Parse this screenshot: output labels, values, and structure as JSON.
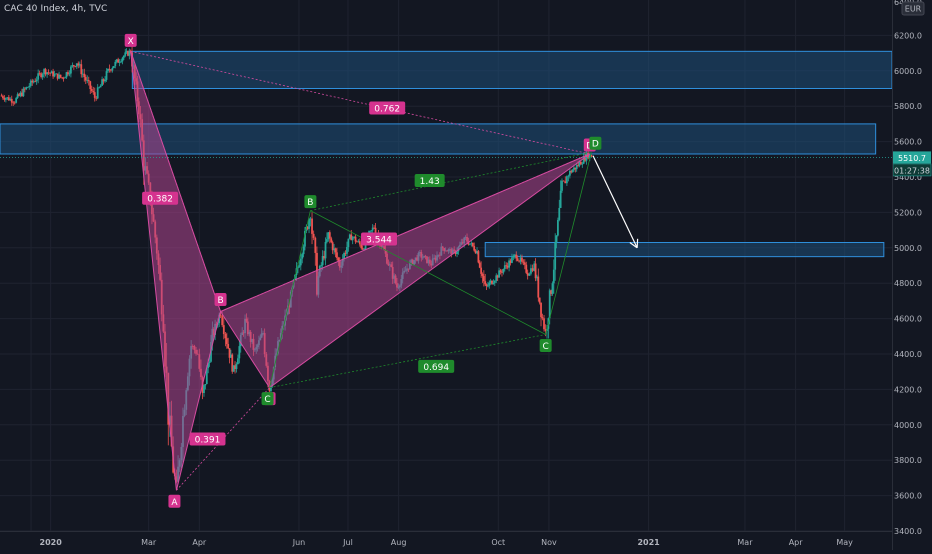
{
  "header": {
    "symbol_title": "CAC 40 Index, 4h, TVC",
    "currency": "EUR",
    "scale_top_label": "6400.0"
  },
  "colors": {
    "background": "#131722",
    "grid": "#1f2330",
    "candle_up": "#26a69a",
    "candle_down": "#ef5350",
    "pattern_fill": "#b0458f",
    "pattern_line": "#d54ba0",
    "label_pink": "#d5338f",
    "label_green": "#1f8b2c",
    "zone_fill": "#1e4e79",
    "zone_border": "#2f8fdc",
    "arrow": "#ffffff",
    "price_tag_bg": "#0f3b36"
  },
  "chart_data": {
    "type": "line",
    "title": "CAC 40 Index, 4h, TVC",
    "currency": "EUR",
    "grid": false,
    "y_axis": {
      "ticks": [
        3400,
        3600,
        3800,
        4000,
        4200,
        4400,
        4600,
        4800,
        5000,
        5200,
        5400,
        5600,
        5800,
        6000,
        6200
      ],
      "tick_labels": [
        "3400.0",
        "3600.0",
        "3800.0",
        "4000.0",
        "4200.0",
        "4400.0",
        "4600.0",
        "4800.0",
        "5000.0",
        "5200.0",
        "5400.0",
        "5600.0",
        "5800.0",
        "6000.0",
        "6200.0"
      ],
      "ylim": [
        3400,
        6400
      ]
    },
    "x_axis": {
      "ticks": [
        "2019-12-20",
        "2020-01-01",
        "2020-03-01",
        "2020-04-01",
        "2020-06-01",
        "2020-07-01",
        "2020-08-01",
        "2020-10-01",
        "2020-11-01",
        "2021-01-01",
        "2021-03-01",
        "2021-04-01",
        "2021-05-01"
      ],
      "tick_labels": [
        "",
        "2020",
        "Mar",
        "Apr",
        "Jun",
        "Jul",
        "Aug",
        "Oct",
        "Nov",
        "2021",
        "Mar",
        "Apr",
        "May"
      ],
      "xlim": [
        "2019-12-01",
        "2021-05-30"
      ]
    },
    "series": [
      {
        "values": [
          [
            "2019-12-01",
            5860
          ],
          [
            "2019-12-10",
            5830
          ],
          [
            "2019-12-18",
            5910
          ],
          [
            "2019-12-28",
            6000
          ],
          [
            "2020-01-08",
            5960
          ],
          [
            "2020-01-17",
            6050
          ],
          [
            "2020-01-28",
            5850
          ],
          [
            "2020-02-06",
            6010
          ],
          [
            "2020-02-14",
            6080
          ],
          [
            "2020-02-19",
            6110
          ],
          [
            "2020-02-24",
            5790
          ],
          [
            "2020-02-27",
            5490
          ],
          [
            "2020-03-02",
            5280
          ],
          [
            "2020-03-06",
            4990
          ],
          [
            "2020-03-10",
            4600
          ],
          [
            "2020-03-13",
            4080
          ],
          [
            "2020-03-16",
            3760
          ],
          [
            "2020-03-18",
            3630
          ],
          [
            "2020-03-20",
            3840
          ],
          [
            "2020-03-24",
            4250
          ],
          [
            "2020-03-27",
            4450
          ],
          [
            "2020-03-31",
            4400
          ],
          [
            "2020-04-03",
            4150
          ],
          [
            "2020-04-09",
            4500
          ],
          [
            "2020-04-14",
            4640
          ],
          [
            "2020-04-17",
            4510
          ],
          [
            "2020-04-22",
            4300
          ],
          [
            "2020-04-29",
            4580
          ],
          [
            "2020-05-05",
            4410
          ],
          [
            "2020-05-10",
            4520
          ],
          [
            "2020-05-14",
            4210
          ],
          [
            "2020-05-20",
            4480
          ],
          [
            "2020-05-27",
            4720
          ],
          [
            "2020-06-03",
            5000
          ],
          [
            "2020-06-08",
            5200
          ],
          [
            "2020-06-12",
            4800
          ],
          [
            "2020-06-19",
            5070
          ],
          [
            "2020-06-26",
            4900
          ],
          [
            "2020-07-03",
            5070
          ],
          [
            "2020-07-10",
            5000
          ],
          [
            "2020-07-17",
            5120
          ],
          [
            "2020-07-24",
            4960
          ],
          [
            "2020-07-31",
            4780
          ],
          [
            "2020-08-07",
            4900
          ],
          [
            "2020-08-14",
            4960
          ],
          [
            "2020-08-21",
            4910
          ],
          [
            "2020-08-28",
            5000
          ],
          [
            "2020-09-04",
            4970
          ],
          [
            "2020-09-11",
            5050
          ],
          [
            "2020-09-18",
            4980
          ],
          [
            "2020-09-23",
            4770
          ],
          [
            "2020-09-28",
            4820
          ],
          [
            "2020-10-05",
            4890
          ],
          [
            "2020-10-12",
            4960
          ],
          [
            "2020-10-19",
            4860
          ],
          [
            "2020-10-23",
            4900
          ],
          [
            "2020-10-28",
            4600
          ],
          [
            "2020-10-30",
            4520
          ],
          [
            "2020-11-04",
            4900
          ],
          [
            "2020-11-09",
            5340
          ],
          [
            "2020-11-13",
            5420
          ],
          [
            "2020-11-18",
            5460
          ],
          [
            "2020-11-24",
            5520
          ],
          [
            "2020-11-27",
            5520
          ]
        ]
      }
    ],
    "pattern_points": [
      {
        "label": "X",
        "date": "2020-02-19",
        "price": 6110
      },
      {
        "label": "A",
        "date": "2020-03-18",
        "price": 3630
      },
      {
        "label": "B",
        "date": "2020-04-14",
        "price": 4640
      },
      {
        "label": "C",
        "date": "2020-05-14",
        "price": 4210
      },
      {
        "label": "D",
        "date": "2020-11-26",
        "price": 5530
      }
    ],
    "pattern2_points": [
      {
        "label": "B",
        "date": "2020-06-08",
        "price": 5210
      },
      {
        "label": "C",
        "date": "2020-10-30",
        "price": 4510
      },
      {
        "label": "D",
        "date": "2020-11-27",
        "price": 5540
      }
    ],
    "ratios": [
      {
        "label": "0.382",
        "date": "2020-03-08",
        "price": 5280,
        "color": "pink"
      },
      {
        "label": "0.391",
        "date": "2020-04-06",
        "price": 3920,
        "color": "pink"
      },
      {
        "label": "3.544",
        "date": "2020-07-20",
        "price": 5050,
        "color": "pink"
      },
      {
        "label": "0.762",
        "date": "2020-07-25",
        "price": 5790,
        "color": "pink"
      },
      {
        "label": "1.43",
        "date": "2020-08-20",
        "price": 5380,
        "color": "green"
      },
      {
        "label": "0.694",
        "date": "2020-08-24",
        "price": 4330,
        "color": "green"
      }
    ],
    "zones": [
      {
        "x0": "2020-02-20",
        "x1": "2021-06-20",
        "y0": 5900,
        "y1": 6110
      },
      {
        "x0": "2019-12-01",
        "x1": "2021-05-20",
        "y0": 5530,
        "y1": 5700
      },
      {
        "x0": "2020-09-23",
        "x1": "2021-05-25",
        "y0": 4950,
        "y1": 5030
      }
    ],
    "projection": {
      "from": [
        "2020-11-28",
        5520
      ],
      "to": [
        "2020-12-25",
        5000
      ]
    },
    "price_readout": {
      "value": "5510.7",
      "price": 5510.7
    },
    "countdown": {
      "value": "01:27:38",
      "price": 5440
    }
  }
}
